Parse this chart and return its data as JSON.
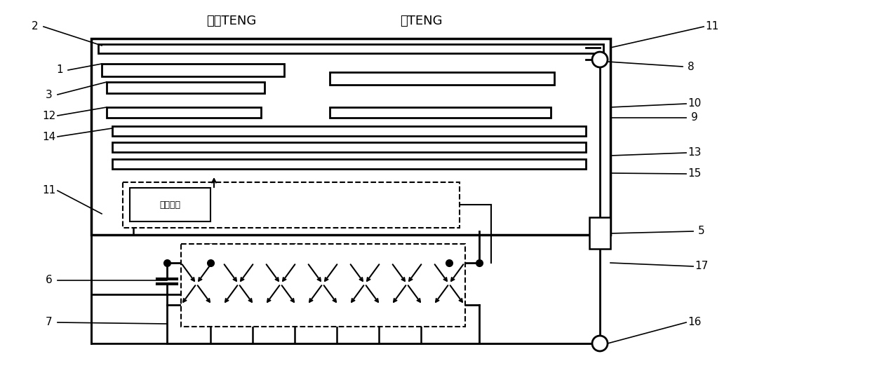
{
  "bg_color": "#ffffff",
  "line_color": "#000000",
  "label_jili": "激励TENG",
  "label_zhu": "主TENG",
  "label_ctrl": "控制模块",
  "figsize": [
    12.4,
    5.55
  ],
  "dpi": 100,
  "label_font": "SimHei",
  "lw_thick": 2.5,
  "lw_med": 1.8,
  "lw_thin": 1.3
}
